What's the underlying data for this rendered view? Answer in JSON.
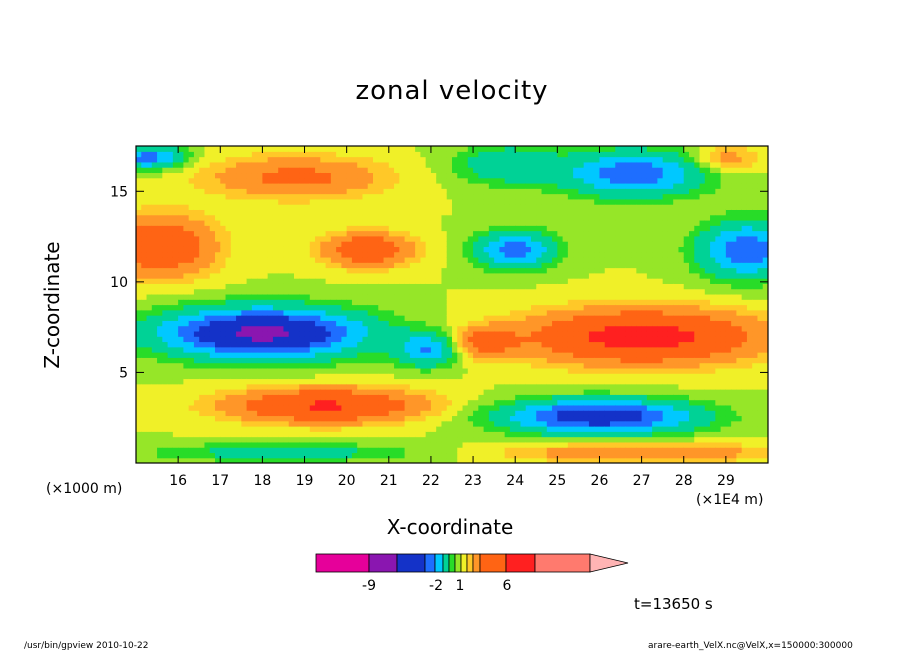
{
  "chart_data": {
    "type": "heatmap",
    "title": "zonal velocity",
    "xlabel": "X-coordinate",
    "ylabel": "Z-coordinate",
    "x_unit": "(×1E4 m)",
    "y_unit": "(×1000 m)",
    "x_ticks": [
      "16",
      "17",
      "18",
      "19",
      "20",
      "21",
      "22",
      "23",
      "24",
      "25",
      "26",
      "27",
      "28",
      "29"
    ],
    "y_ticks": [
      "15",
      "10",
      "5"
    ],
    "xlim": [
      15.0,
      30.0
    ],
    "ylim": [
      0.0,
      17.5
    ],
    "colorbar": {
      "tick_labels": [
        "-9",
        "-2",
        "1",
        "6"
      ],
      "colors": [
        "#e6009a",
        "#8a16b0",
        "#1432c8",
        "#1e6eff",
        "#00c8ff",
        "#00d296",
        "#28dc28",
        "#96e628",
        "#f0f028",
        "#ffc828",
        "#ff9628",
        "#ff6414",
        "#ff2020",
        "#ff7a6e",
        "#ffb4b4"
      ]
    },
    "time_label": "t=13650 s"
  },
  "footer": {
    "left": "/usr/bin/gpview   2010-10-22",
    "right": "arare-earth_VelX.nc@VelX,x=150000:300000"
  }
}
